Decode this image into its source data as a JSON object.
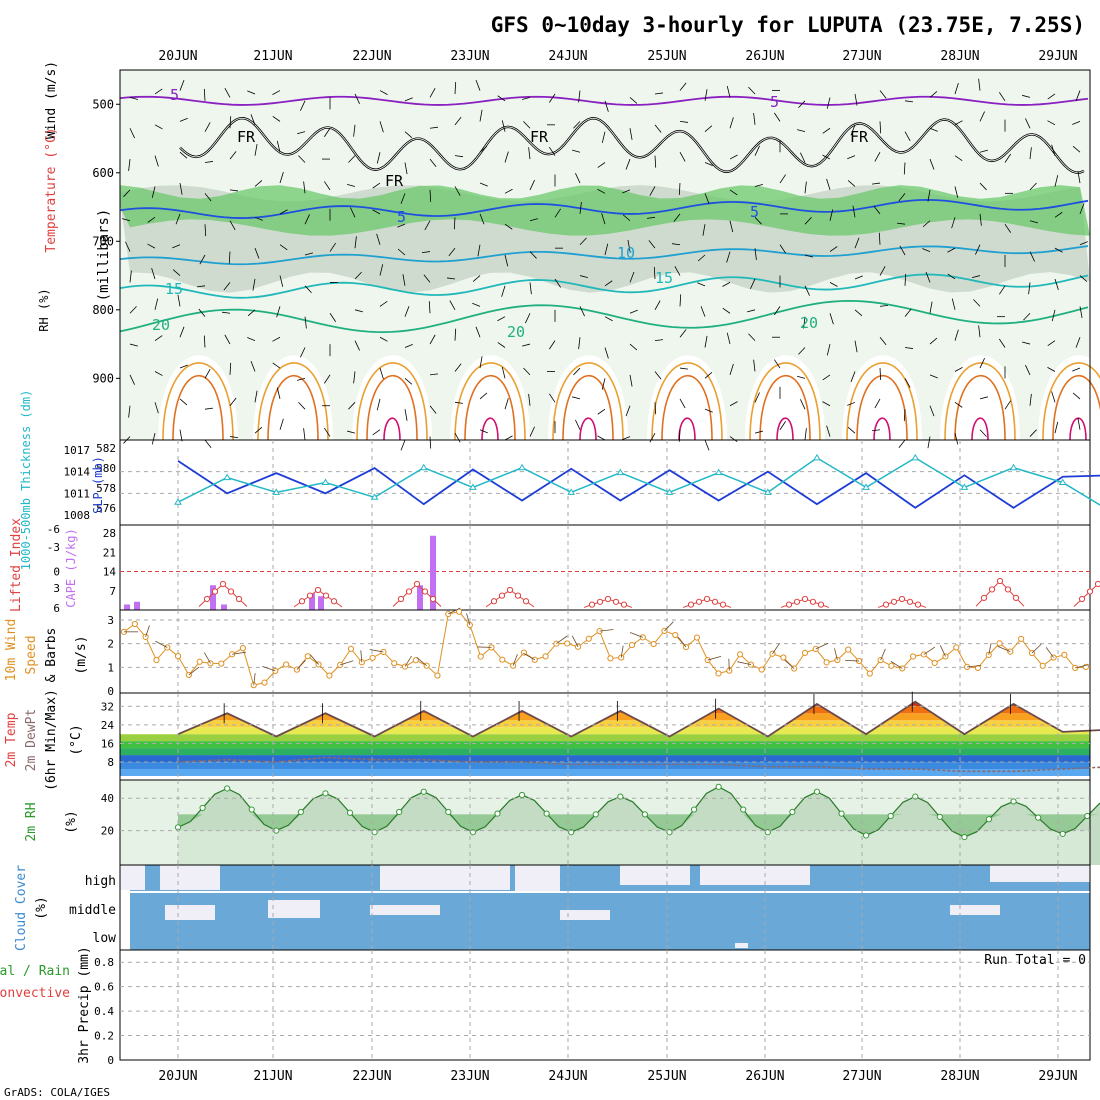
{
  "title": "GFS 0~10day 3-hourly for LUPUTA (23.75E, 7.25S)",
  "credit": "GrADS: COLA/IGES",
  "days": [
    "20JUN",
    "21JUN",
    "22JUN",
    "23JUN",
    "24JUN",
    "25JUN",
    "26JUN",
    "27JUN",
    "28JUN",
    "29JUN"
  ],
  "colors": {
    "frame": "#000000",
    "grid": "#aaaaaa",
    "slp": "#1e3cd6",
    "thickness": "#22b8c8",
    "cape": "#c070f0",
    "lifted_index": "#e04040",
    "wind10m": "#e09020",
    "rh2m": "#3a9a3a",
    "cloud": "#6aa8d8",
    "cloud_gap": "#f0eef6",
    "temp_hot": "#e04a10",
    "temp_warm": "#f8a020",
    "dewpoint": "#8a6a6a"
  },
  "panels": {
    "upper": {
      "ylabel_wind": "Wind (m/s)",
      "ylabel_temp": "Temperature (°C)",
      "ylabel_rh": "RH (%)",
      "ylabel_units": "(millibars)",
      "pressure_ticks": [
        "500",
        "600",
        "700",
        "800",
        "900"
      ],
      "contour_labels": [
        {
          "text": "5",
          "color": "#8a20c0"
        },
        {
          "text": "5",
          "color": "#8a20c0"
        },
        {
          "text": "FR",
          "color": "#000000"
        },
        {
          "text": "FR",
          "color": "#000000"
        },
        {
          "text": "FR",
          "color": "#000000"
        },
        {
          "text": "FR",
          "color": "#000000"
        },
        {
          "text": "5",
          "color": "#1e50e0"
        },
        {
          "text": "5",
          "color": "#1e50e0"
        },
        {
          "text": "10",
          "color": "#20a0d0"
        },
        {
          "text": "15",
          "color": "#20b8b8"
        },
        {
          "text": "15",
          "color": "#20b8b8"
        },
        {
          "text": "20",
          "color": "#20b080"
        },
        {
          "text": "20",
          "color": "#20b080"
        },
        {
          "text": "20",
          "color": "#20b080"
        }
      ]
    },
    "slp": {
      "ylabel_left": "1000-500mb Thickness (dm)",
      "ylabel_right": "SLP (mb)",
      "left_ticks": [
        "582",
        "580",
        "578",
        "576"
      ],
      "right_ticks": [
        "1017",
        "1014",
        "1011",
        "1008"
      ]
    },
    "cape": {
      "ylabel_left": "Lifted Index",
      "ylabel_right": "CAPE (J/kg)",
      "left_ticks": [
        "-6",
        "-3",
        "0",
        "3",
        "6"
      ],
      "right_ticks": [
        "28",
        "21",
        "14",
        "7"
      ]
    },
    "wind": {
      "ylabel_1": "10m Wind",
      "ylabel_2": "Speed",
      "ylabel_3": "& Barbs",
      "ylabel_units": "(m/s)",
      "ticks": [
        "3",
        "2",
        "1",
        "0"
      ]
    },
    "temp": {
      "ylabel_1": "2m Temp",
      "ylabel_2": "2m DewPt",
      "ylabel_3": "(6hr Min/Max)",
      "ylabel_units": "(°C)",
      "ticks": [
        "32",
        "24",
        "16",
        "8"
      ]
    },
    "rh": {
      "ylabel": "2m RH",
      "ylabel_units": "(%)",
      "ticks": [
        "40",
        "20"
      ]
    },
    "cloud": {
      "ylabel": "Cloud Cover",
      "ylabel_units": "(%)",
      "levels": [
        "high",
        "middle",
        "low"
      ]
    },
    "precip": {
      "ylabel_1": "Total / Rain",
      "ylabel_2": "Convective",
      "ylabel_units": "3hr Precip (mm)",
      "ticks": [
        "0.8",
        "0.6",
        "0.4",
        "0.2",
        "0"
      ],
      "run_total": "Run Total = 0"
    }
  },
  "chart_data": [
    {
      "type": "line",
      "title": "SLP (mb)",
      "x": [
        "20JUN",
        "20JUN+12",
        "21JUN",
        "21JUN+12",
        "22JUN",
        "22JUN+12",
        "23JUN",
        "23JUN+12",
        "24JUN",
        "24JUN+12",
        "25JUN",
        "25JUN+12",
        "26JUN",
        "26JUN+12",
        "27JUN",
        "27JUN+12",
        "28JUN",
        "28JUN+12",
        "29JUN",
        "29JUN+12"
      ],
      "series": [
        {
          "name": "SLP (mb)",
          "values": [
            1015.5,
            1011.0,
            1013.8,
            1011.0,
            1014.5,
            1009.5,
            1014.3,
            1010.0,
            1014.4,
            1010.0,
            1014.2,
            1010.0,
            1014.0,
            1009.5,
            1013.8,
            1009.0,
            1013.5,
            1009.0,
            1013.3,
            1013.5
          ]
        }
      ],
      "ylim": [
        1008,
        1017
      ]
    },
    {
      "type": "line",
      "title": "1000-500mb Thickness (dm)",
      "series": [
        {
          "name": "1000-500mb Thickness (dm)",
          "values": [
            576.5,
            579.0,
            577.5,
            578.5,
            577.0,
            580.0,
            578.0,
            580.0,
            577.5,
            579.5,
            577.5,
            579.5,
            577.5,
            581.0,
            578.0,
            581.0,
            578.0,
            580.0,
            578.5,
            575.5
          ]
        }
      ],
      "ylim": [
        575,
        582
      ]
    },
    {
      "type": "bar",
      "title": "CAPE (J/kg)",
      "x": [
        "19JUN+18",
        "20JUN+09",
        "20JUN+12",
        "21JUN+09",
        "21JUN+12",
        "22JUN+09",
        "22JUN+12",
        "22JUN+15"
      ],
      "values": [
        2,
        3,
        9,
        2,
        6,
        5,
        9,
        27
      ],
      "ylim": [
        0,
        28
      ]
    },
    {
      "type": "line",
      "title": "Lifted Index",
      "values_daily_max_pos": [
        4,
        3,
        4,
        3,
        1.5,
        1.5,
        1.5,
        1.5,
        4.5,
        4
      ],
      "ylim": [
        -6,
        6
      ]
    },
    {
      "type": "line",
      "title": "10m Wind Speed (m/s)",
      "series": [
        {
          "name": "10m Wind Speed",
          "values": [
            2.5,
            1.5,
            1.0,
            1.5,
            0.5,
            1.2,
            1.0,
            1.5,
            1.3,
            1.0,
            3.1,
            1.5,
            1.3,
            1.8,
            2.2,
            1.6,
            2.3,
            2.2,
            1.0,
            1.2,
            1.3,
            1.5,
            1.4,
            1.0,
            1.3,
            1.5,
            1.2,
            2.0,
            1.4,
            1.2
          ]
        }
      ],
      "ylim": [
        0,
        3
      ]
    },
    {
      "type": "area",
      "title": "2m Temp (°C)",
      "series": [
        {
          "name": "2m Temp",
          "values": [
            20,
            29,
            19,
            29,
            19,
            30,
            19,
            30,
            19,
            30,
            19,
            31,
            19,
            33,
            20,
            34,
            20,
            33,
            21,
            22
          ]
        },
        {
          "name": "2m DewPt",
          "values": [
            8,
            9,
            8,
            10,
            9,
            9,
            8,
            8,
            7,
            7,
            7,
            7,
            6,
            6,
            5,
            5,
            4,
            4,
            5,
            6
          ]
        }
      ],
      "ylim": [
        2,
        36
      ]
    },
    {
      "type": "area",
      "title": "2m RH (%)",
      "series": [
        {
          "name": "2m RH",
          "values": [
            22,
            46,
            20,
            43,
            19,
            44,
            19,
            42,
            19,
            41,
            19,
            47,
            19,
            44,
            17,
            41,
            16,
            38,
            18,
            40
          ]
        }
      ],
      "ylim": [
        0,
        50
      ]
    },
    {
      "type": "heatmap",
      "title": "Cloud Cover (%)",
      "rows": [
        "high",
        "middle",
        "low"
      ],
      "note": "mostly full coverage with scattered clear patches"
    },
    {
      "type": "bar",
      "title": "3hr Precip (mm)",
      "values": [
        0,
        0,
        0,
        0,
        0,
        0,
        0,
        0,
        0,
        0
      ],
      "ylim": [
        0,
        0.9
      ]
    }
  ]
}
